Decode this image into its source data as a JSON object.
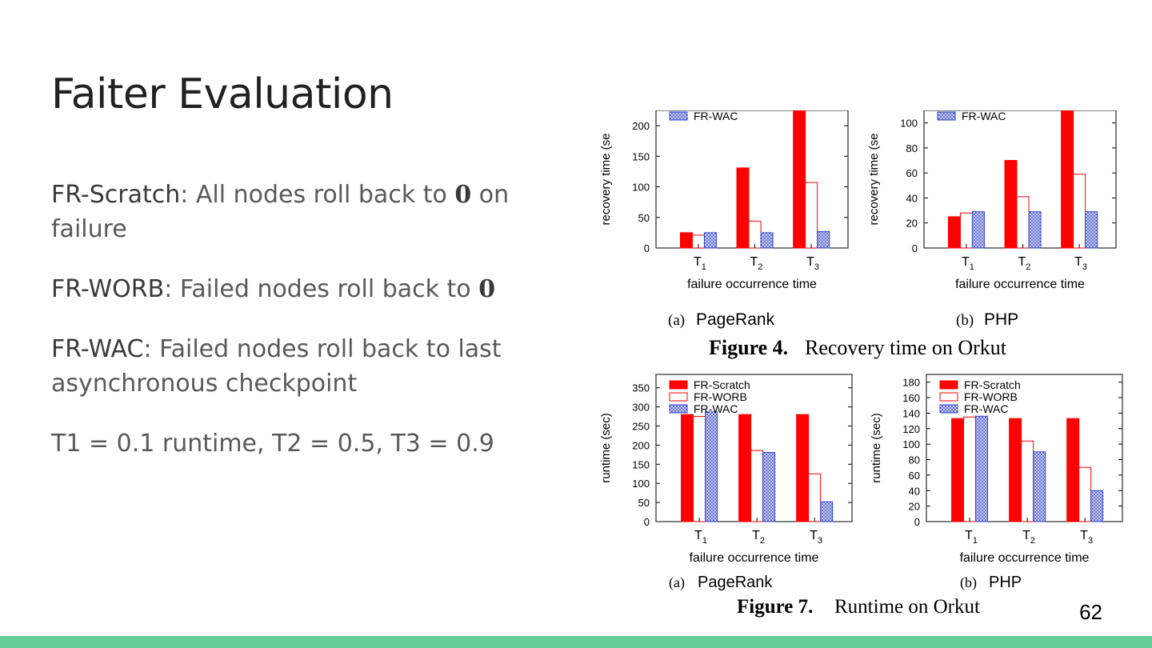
{
  "slide": {
    "title": "Faiter Evaluation",
    "page_number": "62",
    "accent_color": "#66cc99"
  },
  "bullets": [
    {
      "term": "FR-Scratch",
      "pre": ": All nodes roll back to ",
      "zero": "0",
      "post": " on failure"
    },
    {
      "term": "FR-WORB",
      "pre": ": Failed nodes roll back to ",
      "zero": "0",
      "post": ""
    },
    {
      "term": "FR-WAC",
      "pre": ": Failed nodes roll back to last asynchronous checkpoint",
      "zero": "",
      "post": ""
    },
    {
      "term": "",
      "pre": "T1 = 0.1 runtime, T2 = 0.5, T3 = 0.9",
      "zero": "",
      "post": ""
    }
  ],
  "figure4": {
    "caption_bold": "Figure 4.",
    "caption_text": "Recovery time on Orkut"
  },
  "figure7": {
    "caption_bold": "Figure 7.",
    "caption_text": "Runtime on Orkut"
  },
  "chart_data": [
    {
      "type": "bar",
      "panel": "(a)",
      "subtitle": "PageRank",
      "ylabel": "recovery time (se",
      "xlabel": "failure occurrence time",
      "categories": [
        "T1",
        "T2",
        "T3"
      ],
      "ylim": [
        0,
        225
      ],
      "yticks": [
        0,
        50,
        100,
        150,
        200
      ],
      "legend": [
        "FR-WAC"
      ],
      "series": [
        {
          "name": "FR-Scratch",
          "values": [
            25,
            131,
            225
          ]
        },
        {
          "name": "FR-WORB",
          "values": [
            21,
            44,
            107
          ]
        },
        {
          "name": "FR-WAC",
          "values": [
            25,
            25,
            27
          ]
        }
      ]
    },
    {
      "type": "bar",
      "panel": "(b)",
      "subtitle": "PHP",
      "ylabel": "recovery time (se",
      "xlabel": "failure occurrence time",
      "categories": [
        "T1",
        "T2",
        "T3"
      ],
      "ylim": [
        0,
        110
      ],
      "yticks": [
        0,
        20,
        40,
        60,
        80,
        100
      ],
      "legend": [
        "FR-WAC"
      ],
      "series": [
        {
          "name": "FR-Scratch",
          "values": [
            25,
            70,
            110
          ]
        },
        {
          "name": "FR-WORB",
          "values": [
            28,
            41,
            59
          ]
        },
        {
          "name": "FR-WAC",
          "values": [
            29,
            29,
            29
          ]
        }
      ]
    },
    {
      "type": "bar",
      "panel": "(a)",
      "subtitle": "PageRank",
      "ylabel": "runtime (sec)",
      "xlabel": "failure occurrence time",
      "categories": [
        "T1",
        "T2",
        "T3"
      ],
      "ylim": [
        0,
        385
      ],
      "yticks": [
        0,
        50,
        100,
        150,
        200,
        250,
        300,
        350
      ],
      "legend": [
        "FR-Scratch",
        "FR-WORB",
        "FR-WAC"
      ],
      "series": [
        {
          "name": "FR-Scratch",
          "values": [
            280,
            280,
            280
          ]
        },
        {
          "name": "FR-WORB",
          "values": [
            275,
            186,
            125
          ]
        },
        {
          "name": "FR-WAC",
          "values": [
            287,
            181,
            52
          ]
        }
      ]
    },
    {
      "type": "bar",
      "panel": "(b)",
      "subtitle": "PHP",
      "ylabel": "runtime (sec)",
      "xlabel": "failure occurrence time",
      "categories": [
        "T1",
        "T2",
        "T3"
      ],
      "ylim": [
        0,
        190
      ],
      "yticks": [
        0,
        20,
        40,
        60,
        80,
        100,
        120,
        140,
        160,
        180
      ],
      "legend": [
        "FR-Scratch",
        "FR-WORB",
        "FR-WAC"
      ],
      "series": [
        {
          "name": "FR-Scratch",
          "values": [
            133,
            133,
            133
          ]
        },
        {
          "name": "FR-WORB",
          "values": [
            135,
            104,
            70
          ]
        },
        {
          "name": "FR-WAC",
          "values": [
            136,
            90,
            40
          ]
        }
      ]
    }
  ]
}
